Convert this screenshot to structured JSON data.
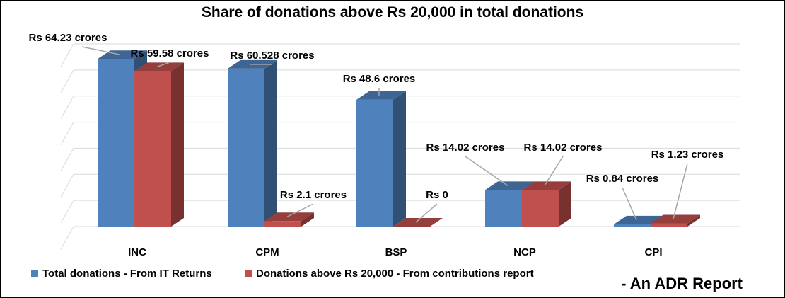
{
  "chart_data": {
    "type": "bar",
    "title": "Share of donations above Rs 20,000 in total donations",
    "categories": [
      "INC",
      "CPM",
      "BSP",
      "NCP",
      "CPI"
    ],
    "series": [
      {
        "name": "Total donations - From IT Returns",
        "values": [
          64.23,
          60.528,
          48.6,
          14.02,
          0.84
        ],
        "labels": [
          "Rs 64.23 crores",
          "Rs 60.528 crores",
          "Rs 48.6 crores",
          "Rs 14.02 crores",
          "Rs 0.84 crores"
        ],
        "color": "#4F81BD"
      },
      {
        "name": "Donations above Rs 20,000 - From contributions report",
        "values": [
          59.58,
          2.1,
          0,
          14.02,
          1.23
        ],
        "labels": [
          "Rs 59.58 crores",
          "Rs 2.1 crores",
          "Rs 0",
          "Rs 14.02 crores",
          "Rs 1.23 crores"
        ],
        "color": "#C0504D"
      }
    ],
    "ylim": [
      0,
      70
    ],
    "grid": true,
    "legend_position": "bottom-left",
    "three_d": true
  },
  "footer": {
    "note": "- An ADR Report"
  }
}
